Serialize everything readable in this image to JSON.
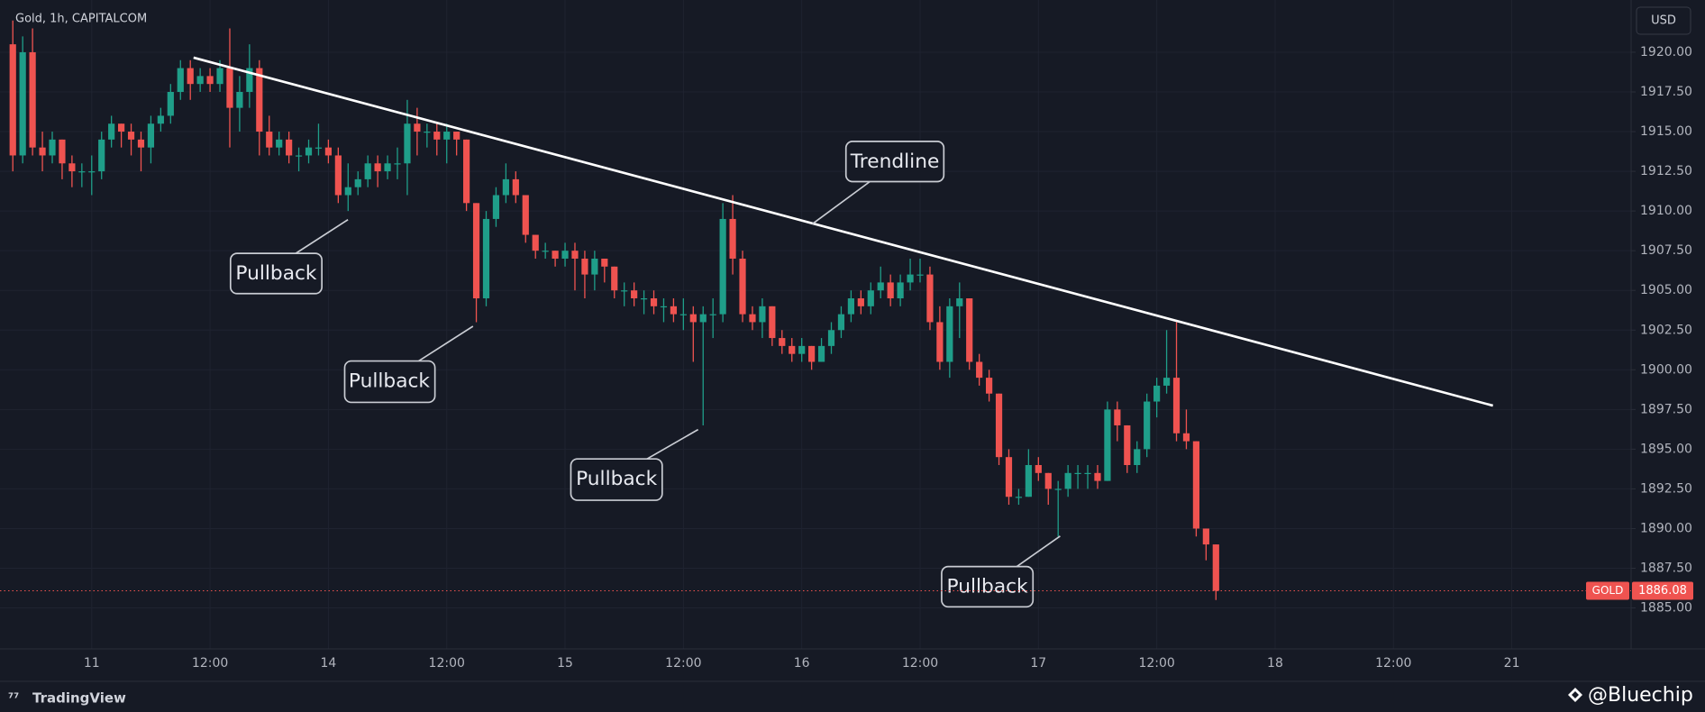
{
  "header": "Gold, 1h, CAPITALCOM",
  "currency": "USD",
  "chart_data": {
    "type": "candlestick",
    "series": [
      {
        "name": "GOLD",
        "up_color": "#1f9e89",
        "down_color": "#ef5350",
        "ohlc": [
          [
            1920.5,
            1922,
            1912.5,
            1913.5
          ],
          [
            1913.5,
            1921,
            1913,
            1920
          ],
          [
            1920,
            1921.5,
            1913.5,
            1914
          ],
          [
            1914,
            1915,
            1912.5,
            1913.5
          ],
          [
            1913.5,
            1915,
            1913,
            1914.5
          ],
          [
            1914.5,
            1914.5,
            1912,
            1913
          ],
          [
            1913,
            1913.5,
            1911.5,
            1912.5
          ],
          [
            1912.5,
            1913,
            1911.5,
            1912.5
          ],
          [
            1912.5,
            1913.5,
            1911,
            1912.5
          ],
          [
            1912.5,
            1915,
            1912,
            1914.5
          ],
          [
            1914.5,
            1916,
            1914,
            1915.5
          ],
          [
            1915.5,
            1915.5,
            1914,
            1915
          ],
          [
            1915,
            1915.5,
            1913.5,
            1914.5
          ],
          [
            1914.5,
            1915,
            1912.5,
            1914
          ],
          [
            1914,
            1916,
            1913,
            1915.5
          ],
          [
            1915.5,
            1916.5,
            1915,
            1916
          ],
          [
            1916,
            1918,
            1915.5,
            1917.5
          ],
          [
            1917.5,
            1919.5,
            1917,
            1919
          ],
          [
            1919,
            1919.5,
            1917,
            1918
          ],
          [
            1918,
            1919,
            1917.5,
            1918.5
          ],
          [
            1918.5,
            1919,
            1917.5,
            1918
          ],
          [
            1918,
            1919.5,
            1917.5,
            1919
          ],
          [
            1919,
            1921.5,
            1914,
            1916.5
          ],
          [
            1916.5,
            1918.5,
            1915,
            1917.5
          ],
          [
            1917.5,
            1920.5,
            1916.5,
            1919
          ],
          [
            1919,
            1919.5,
            1913.5,
            1915
          ],
          [
            1915,
            1916,
            1913.5,
            1914
          ],
          [
            1914,
            1915,
            1913.5,
            1914.5
          ],
          [
            1914.5,
            1915,
            1913,
            1913.5
          ],
          [
            1913.5,
            1914,
            1912.5,
            1913.5
          ],
          [
            1913.5,
            1914.5,
            1913,
            1914
          ],
          [
            1914,
            1915.5,
            1913.5,
            1914
          ],
          [
            1914,
            1914.5,
            1913,
            1913.5
          ],
          [
            1913.5,
            1914,
            1910.5,
            1911
          ],
          [
            1911,
            1913,
            1910,
            1911.5
          ],
          [
            1911.5,
            1912.5,
            1911,
            1912
          ],
          [
            1912,
            1913.5,
            1911.5,
            1913
          ],
          [
            1913,
            1913.5,
            1911.5,
            1912.5
          ],
          [
            1912.5,
            1913.5,
            1912,
            1913
          ],
          [
            1913,
            1914,
            1912,
            1913
          ],
          [
            1913,
            1917,
            1911,
            1915.5
          ],
          [
            1915.5,
            1916.5,
            1913.5,
            1915
          ],
          [
            1915,
            1915.5,
            1914,
            1915
          ],
          [
            1915,
            1915.5,
            1913.5,
            1914.5
          ],
          [
            1914.5,
            1915.5,
            1913,
            1915
          ],
          [
            1915,
            1915,
            1913.5,
            1914.5
          ],
          [
            1914.5,
            1914.5,
            1910,
            1910.5
          ],
          [
            1910.5,
            1910.5,
            1903,
            1904.5
          ],
          [
            1904.5,
            1910,
            1904,
            1909.5
          ],
          [
            1909.5,
            1911.5,
            1909,
            1911
          ],
          [
            1911,
            1913,
            1910.5,
            1912
          ],
          [
            1912,
            1912.5,
            1910.5,
            1911
          ],
          [
            1911,
            1911,
            1908,
            1908.5
          ],
          [
            1908.5,
            1908.5,
            1907,
            1907.5
          ],
          [
            1907.5,
            1908,
            1907,
            1907.5
          ],
          [
            1907.5,
            1907.5,
            1906.5,
            1907
          ],
          [
            1907,
            1908,
            1906.5,
            1907.5
          ],
          [
            1907.5,
            1908,
            1905,
            1907
          ],
          [
            1907,
            1907.5,
            1904.5,
            1906
          ],
          [
            1906,
            1907.5,
            1905,
            1907
          ],
          [
            1907,
            1907,
            1905.5,
            1906.5
          ],
          [
            1906.5,
            1906.5,
            1904.5,
            1905
          ],
          [
            1905,
            1905.5,
            1904,
            1905
          ],
          [
            1905,
            1905.5,
            1904,
            1904.5
          ],
          [
            1904.5,
            1905,
            1903.5,
            1904.5
          ],
          [
            1904.5,
            1905,
            1903.5,
            1904
          ],
          [
            1904,
            1904.5,
            1903,
            1904
          ],
          [
            1904,
            1904.5,
            1903,
            1903.5
          ],
          [
            1903.5,
            1904.5,
            1902.5,
            1903.5
          ],
          [
            1903.5,
            1904,
            1900.5,
            1903
          ],
          [
            1903,
            1904,
            1896.5,
            1903.5
          ],
          [
            1903.5,
            1904.5,
            1902,
            1903.5
          ],
          [
            1903.5,
            1910.5,
            1903,
            1909.5
          ],
          [
            1909.5,
            1911,
            1906,
            1907
          ],
          [
            1907,
            1907.5,
            1903,
            1903.5
          ],
          [
            1903.5,
            1904,
            1902.5,
            1903
          ],
          [
            1903,
            1904.5,
            1902,
            1904
          ],
          [
            1904,
            1904,
            1901.5,
            1902
          ],
          [
            1902,
            1902.5,
            1901,
            1901.5
          ],
          [
            1901.5,
            1902,
            1900.5,
            1901
          ],
          [
            1901,
            1902,
            1900.5,
            1901.5
          ],
          [
            1901.5,
            1901.5,
            1900,
            1900.5
          ],
          [
            1900.5,
            1902,
            1900.5,
            1901.5
          ],
          [
            1901.5,
            1903,
            1901,
            1902.5
          ],
          [
            1902.5,
            1904,
            1902,
            1903.5
          ],
          [
            1903.5,
            1905,
            1903,
            1904.5
          ],
          [
            1904.5,
            1905,
            1903.5,
            1904
          ],
          [
            1904,
            1905.5,
            1903.5,
            1905
          ],
          [
            1905,
            1906.5,
            1904.5,
            1905.5
          ],
          [
            1905.5,
            1906,
            1904,
            1904.5
          ],
          [
            1904.5,
            1906,
            1904,
            1905.5
          ],
          [
            1905.5,
            1907,
            1905,
            1906
          ],
          [
            1906,
            1907,
            1905.5,
            1906
          ],
          [
            1906,
            1906.5,
            1902.5,
            1903
          ],
          [
            1903,
            1904,
            1900,
            1900.5
          ],
          [
            1900.5,
            1904.5,
            1899.5,
            1904
          ],
          [
            1904,
            1905.5,
            1902,
            1904.5
          ],
          [
            1904.5,
            1904.5,
            1900,
            1900.5
          ],
          [
            1900.5,
            1901,
            1899,
            1899.5
          ],
          [
            1899.5,
            1900,
            1898,
            1898.5
          ],
          [
            1898.5,
            1898.5,
            1894,
            1894.5
          ],
          [
            1894.5,
            1895,
            1891.5,
            1892
          ],
          [
            1892,
            1892.5,
            1891.5,
            1892
          ],
          [
            1892,
            1895,
            1892,
            1894
          ],
          [
            1894,
            1894.5,
            1893,
            1893.5
          ],
          [
            1893.5,
            1893.5,
            1891.5,
            1892.5
          ],
          [
            1892.5,
            1893,
            1889.5,
            1892.5
          ],
          [
            1892.5,
            1894,
            1892,
            1893.5
          ],
          [
            1893.5,
            1894,
            1892.5,
            1893.5
          ],
          [
            1893.5,
            1894,
            1892.5,
            1893.5
          ],
          [
            1893.5,
            1894,
            1892.5,
            1893
          ],
          [
            1893,
            1898,
            1893,
            1897.5
          ],
          [
            1897.5,
            1898,
            1895.5,
            1896.5
          ],
          [
            1896.5,
            1896.5,
            1893.5,
            1894
          ],
          [
            1894,
            1895.5,
            1893.5,
            1895
          ],
          [
            1895,
            1898.5,
            1894.5,
            1898
          ],
          [
            1898,
            1899.5,
            1897,
            1899
          ],
          [
            1899,
            1902.5,
            1898.5,
            1899.5
          ],
          [
            1899.5,
            1903,
            1895.5,
            1896
          ],
          [
            1896,
            1897.5,
            1895,
            1895.5
          ],
          [
            1895.5,
            1895.5,
            1889.5,
            1890
          ],
          [
            1890,
            1890,
            1888,
            1889
          ],
          [
            1889,
            1889,
            1885.5,
            1886.08
          ]
        ]
      }
    ],
    "last_price": 1886.08,
    "xlim": [
      -1.3,
      164.1
    ],
    "xticks": [
      {
        "value": 8,
        "label": "11"
      },
      {
        "value": 20,
        "label": "12:00"
      },
      {
        "value": 32,
        "label": "14"
      },
      {
        "value": 44,
        "label": "12:00"
      },
      {
        "value": 56,
        "label": "15"
      },
      {
        "value": 68,
        "label": "12:00"
      },
      {
        "value": 80,
        "label": "16"
      },
      {
        "value": 92,
        "label": "12:00"
      },
      {
        "value": 104,
        "label": "17"
      },
      {
        "value": 116,
        "label": "12:00"
      },
      {
        "value": 128,
        "label": "18"
      },
      {
        "value": 140,
        "label": "12:00"
      },
      {
        "value": 152,
        "label": "21"
      }
    ],
    "ylim": [
      1882.42,
      1923.29
    ],
    "yticks": [
      {
        "value": 1885,
        "label": "1885.00"
      },
      {
        "value": 1887.5,
        "label": "1887.50"
      },
      {
        "value": 1890,
        "label": "1890.00"
      },
      {
        "value": 1892.5,
        "label": "1892.50"
      },
      {
        "value": 1895,
        "label": "1895.00"
      },
      {
        "value": 1897.5,
        "label": "1897.50"
      },
      {
        "value": 1900,
        "label": "1900.00"
      },
      {
        "value": 1902.5,
        "label": "1902.50"
      },
      {
        "value": 1905,
        "label": "1905.00"
      },
      {
        "value": 1907.5,
        "label": "1907.50"
      },
      {
        "value": 1910,
        "label": "1910.00"
      },
      {
        "value": 1912.5,
        "label": "1912.50"
      },
      {
        "value": 1915,
        "label": "1915.00"
      },
      {
        "value": 1917.5,
        "label": "1917.50"
      },
      {
        "value": 1920,
        "label": "1920.00"
      }
    ],
    "grid": true,
    "annotations": [
      {
        "text": "Trendline"
      },
      {
        "text": "Pullback"
      },
      {
        "text": "Pullback"
      },
      {
        "text": "Pullback"
      },
      {
        "text": "Pullback"
      }
    ]
  },
  "footer": {
    "brand": "TradingView",
    "credit": "@Bluechip"
  }
}
